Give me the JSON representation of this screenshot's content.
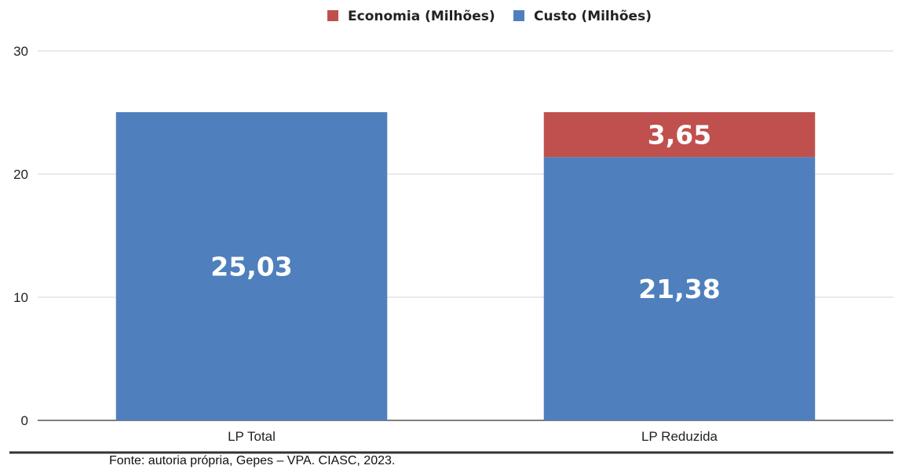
{
  "chart_data": {
    "type": "bar",
    "stacked": true,
    "categories": [
      "LP Total",
      "LP Reduzida"
    ],
    "series": [
      {
        "name": "Custo (Milhões)",
        "values": [
          25.03,
          21.38
        ],
        "labels": [
          "25,03",
          "21,38"
        ],
        "color": "#4f80bd"
      },
      {
        "name": "Economia (Milhões)",
        "values": [
          null,
          3.65
        ],
        "labels": [
          "",
          "3,65"
        ],
        "color": "#c0504d"
      }
    ],
    "legend_order": [
      "Economia (Milhões)",
      "Custo (Milhões)"
    ],
    "legend_position": "top",
    "ylim": [
      0,
      30
    ],
    "yticks": [
      0,
      10,
      20,
      30
    ],
    "grid": true,
    "title": "",
    "xlabel": "",
    "ylabel": ""
  },
  "caption": "Fonte: autoria própria, Gepes – VPA. CIASC, 2023."
}
